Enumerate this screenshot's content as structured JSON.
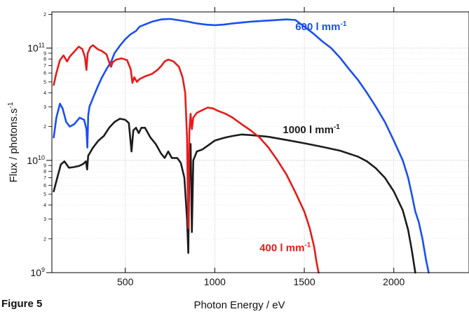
{
  "figure_caption": "Figure 5",
  "chart_data": {
    "type": "line",
    "title": "",
    "xlabel": "Photon Energy / eV",
    "ylabel": "Flux / photons.s",
    "ylabel_superscript": "-1",
    "xlim": [
      90,
      2420
    ],
    "ylim": [
      1000000000.0,
      210000000000.0
    ],
    "yscale": "log",
    "grid": true,
    "x_ticks": [
      500,
      1000,
      1500,
      2000
    ],
    "y_major_ticks": [
      {
        "value": 1000000000.0,
        "base": "10",
        "exp": "9"
      },
      {
        "value": 10000000000.0,
        "base": "10",
        "exp": "10"
      },
      {
        "value": 100000000000.0,
        "base": "10",
        "exp": "11"
      }
    ],
    "y_minor_digits": [
      "2",
      "3",
      "4",
      "5",
      "6",
      "7",
      "8",
      "9"
    ],
    "series": [
      {
        "name": "600 l mm",
        "name_superscript": "-1",
        "color": "#1a4ff0",
        "points": [
          [
            100,
            16000000000.0
          ],
          [
            115,
            24000000000.0
          ],
          [
            135,
            32000000000.0
          ],
          [
            150,
            29000000000.0
          ],
          [
            170,
            22000000000.0
          ],
          [
            190,
            20000000000.0
          ],
          [
            215,
            21000000000.0
          ],
          [
            245,
            24000000000.0
          ],
          [
            270,
            23000000000.0
          ],
          [
            283,
            19000000000.0
          ],
          [
            288,
            13000000000.0
          ],
          [
            293,
            25000000000.0
          ],
          [
            300,
            30000000000.0
          ],
          [
            320,
            36000000000.0
          ],
          [
            345,
            45000000000.0
          ],
          [
            370,
            55000000000.0
          ],
          [
            395,
            65000000000.0
          ],
          [
            420,
            75000000000.0
          ],
          [
            440,
            90000000000.0
          ],
          [
            470,
            105000000000.0
          ],
          [
            500,
            120000000000.0
          ],
          [
            530,
            133000000000.0
          ],
          [
            560,
            142000000000.0
          ],
          [
            580,
            155000000000.0
          ],
          [
            600,
            160000000000.0
          ],
          [
            650,
            172000000000.0
          ],
          [
            700,
            180000000000.0
          ],
          [
            750,
            182000000000.0
          ],
          [
            800,
            177000000000.0
          ],
          [
            850,
            172000000000.0
          ],
          [
            880,
            168000000000.0
          ],
          [
            900,
            166000000000.0
          ],
          [
            950,
            162000000000.0
          ],
          [
            1000,
            160000000000.0
          ],
          [
            1050,
            162000000000.0
          ],
          [
            1100,
            166000000000.0
          ],
          [
            1200,
            172000000000.0
          ],
          [
            1300,
            176000000000.0
          ],
          [
            1400,
            180000000000.0
          ],
          [
            1450,
            178000000000.0
          ],
          [
            1500,
            155000000000.0
          ],
          [
            1550,
            135000000000.0
          ],
          [
            1600,
            115000000000.0
          ],
          [
            1650,
            100000000000.0
          ],
          [
            1700,
            82000000000.0
          ],
          [
            1750,
            65000000000.0
          ],
          [
            1800,
            52000000000.0
          ],
          [
            1850,
            40000000000.0
          ],
          [
            1900,
            30000000000.0
          ],
          [
            1950,
            22000000000.0
          ],
          [
            2000,
            15000000000.0
          ],
          [
            2050,
            10000000000.0
          ],
          [
            2080,
            7000000000.0
          ],
          [
            2100,
            5000000000.0
          ],
          [
            2120,
            3500000000.0
          ],
          [
            2140,
            2800000000.0
          ],
          [
            2160,
            2000000000.0
          ],
          [
            2180,
            1300000000.0
          ],
          [
            2195,
            1000000000.0
          ]
        ]
      },
      {
        "name": "1000 l mm",
        "name_superscript": "-1",
        "color": "#1c1c1c",
        "points": [
          [
            100,
            5300000000.0
          ],
          [
            120,
            7000000000.0
          ],
          [
            140,
            9200000000.0
          ],
          [
            160,
            9800000000.0
          ],
          [
            185,
            8600000000.0
          ],
          [
            210,
            8700000000.0
          ],
          [
            240,
            8900000000.0
          ],
          [
            265,
            9300000000.0
          ],
          [
            280,
            9800000000.0
          ],
          [
            287,
            8300000000.0
          ],
          [
            293,
            11000000000.0
          ],
          [
            320,
            13000000000.0
          ],
          [
            350,
            15000000000.0
          ],
          [
            380,
            16500000000.0
          ],
          [
            410,
            19500000000.0
          ],
          [
            440,
            22000000000.0
          ],
          [
            470,
            23500000000.0
          ],
          [
            500,
            23000000000.0
          ],
          [
            520,
            21500000000.0
          ],
          [
            535,
            12000000000.0
          ],
          [
            545,
            18500000000.0
          ],
          [
            560,
            19500000000.0
          ],
          [
            575,
            17500000000.0
          ],
          [
            590,
            19500000000.0
          ],
          [
            610,
            19500000000.0
          ],
          [
            640,
            16000000000.0
          ],
          [
            670,
            14000000000.0
          ],
          [
            700,
            11500000000.0
          ],
          [
            720,
            10500000000.0
          ],
          [
            740,
            12000000000.0
          ],
          [
            760,
            10500000000.0
          ],
          [
            790,
            10500000000.0
          ],
          [
            810,
            9500000000.0
          ],
          [
            830,
            7000000000.0
          ],
          [
            845,
            3000000000.0
          ],
          [
            852,
            1500000000.0
          ],
          [
            858,
            9000000000.0
          ],
          [
            865,
            14000000000.0
          ],
          [
            872,
            2300000000.0
          ],
          [
            880,
            10000000000.0
          ],
          [
            900,
            12000000000.0
          ],
          [
            930,
            12500000000.0
          ],
          [
            960,
            13500000000.0
          ],
          [
            1000,
            15000000000.0
          ],
          [
            1030,
            15500000000.0
          ],
          [
            1060,
            16000000000.0
          ],
          [
            1100,
            16500000000.0
          ],
          [
            1150,
            17000000000.0
          ],
          [
            1200,
            16800000000.0
          ],
          [
            1300,
            16200000000.0
          ],
          [
            1400,
            15200000000.0
          ],
          [
            1500,
            14200000000.0
          ],
          [
            1600,
            13200000000.0
          ],
          [
            1700,
            12200000000.0
          ],
          [
            1800,
            10800000000.0
          ],
          [
            1850,
            9800000000.0
          ],
          [
            1900,
            8500000000.0
          ],
          [
            1950,
            7000000000.0
          ],
          [
            2000,
            5300000000.0
          ],
          [
            2050,
            3600000000.0
          ],
          [
            2080,
            2400000000.0
          ],
          [
            2100,
            1600000000.0
          ],
          [
            2120,
            1000000000.0
          ]
        ]
      },
      {
        "name": "400 l mm",
        "name_superscript": "-1",
        "color": "#e51b1b",
        "points": [
          [
            100,
            47000000000.0
          ],
          [
            115,
            60000000000.0
          ],
          [
            135,
            78000000000.0
          ],
          [
            155,
            86000000000.0
          ],
          [
            175,
            76000000000.0
          ],
          [
            190,
            84000000000.0
          ],
          [
            215,
            93000000000.0
          ],
          [
            240,
            103000000000.0
          ],
          [
            260,
            98000000000.0
          ],
          [
            275,
            83000000000.0
          ],
          [
            283,
            64000000000.0
          ],
          [
            290,
            90000000000.0
          ],
          [
            305,
            102000000000.0
          ],
          [
            320,
            106000000000.0
          ],
          [
            345,
            98000000000.0
          ],
          [
            370,
            94000000000.0
          ],
          [
            395,
            88000000000.0
          ],
          [
            410,
            75000000000.0
          ],
          [
            420,
            68000000000.0
          ],
          [
            430,
            75000000000.0
          ],
          [
            450,
            79000000000.0
          ],
          [
            480,
            81000000000.0
          ],
          [
            510,
            78000000000.0
          ],
          [
            530,
            65000000000.0
          ],
          [
            540,
            49000000000.0
          ],
          [
            550,
            55000000000.0
          ],
          [
            565,
            50000000000.0
          ],
          [
            580,
            53000000000.0
          ],
          [
            610,
            56000000000.0
          ],
          [
            650,
            59000000000.0
          ],
          [
            680,
            64000000000.0
          ],
          [
            700,
            69000000000.0
          ],
          [
            720,
            76000000000.0
          ],
          [
            740,
            79000000000.0
          ],
          [
            770,
            76000000000.0
          ],
          [
            800,
            68000000000.0
          ],
          [
            820,
            55000000000.0
          ],
          [
            835,
            40000000000.0
          ],
          [
            845,
            16000000000.0
          ],
          [
            852,
            2500000000.0
          ],
          [
            858,
            18000000000.0
          ],
          [
            865,
            26000000000.0
          ],
          [
            872,
            19000000000.0
          ],
          [
            880,
            24000000000.0
          ],
          [
            900,
            26500000000.0
          ],
          [
            930,
            28000000000.0
          ],
          [
            960,
            29500000000.0
          ],
          [
            990,
            29000000000.0
          ],
          [
            1020,
            27500000000.0
          ],
          [
            1060,
            26000000000.0
          ],
          [
            1100,
            24000000000.0
          ],
          [
            1150,
            21000000000.0
          ],
          [
            1200,
            18500000000.0
          ],
          [
            1250,
            16000000000.0
          ],
          [
            1300,
            13000000000.0
          ],
          [
            1350,
            10000000000.0
          ],
          [
            1400,
            7500000000.0
          ],
          [
            1450,
            5200000000.0
          ],
          [
            1500,
            3500000000.0
          ],
          [
            1530,
            2500000000.0
          ],
          [
            1555,
            1700000000.0
          ],
          [
            1570,
            1200000000.0
          ],
          [
            1580,
            1000000000.0
          ]
        ]
      }
    ],
    "series_labels": [
      {
        "series": 0,
        "at": [
          1450,
          145000000000.0
        ]
      },
      {
        "series": 1,
        "at": [
          1380,
          17500000000.0
        ]
      },
      {
        "series": 2,
        "at": [
          1250,
          1550000000.0
        ]
      }
    ]
  }
}
